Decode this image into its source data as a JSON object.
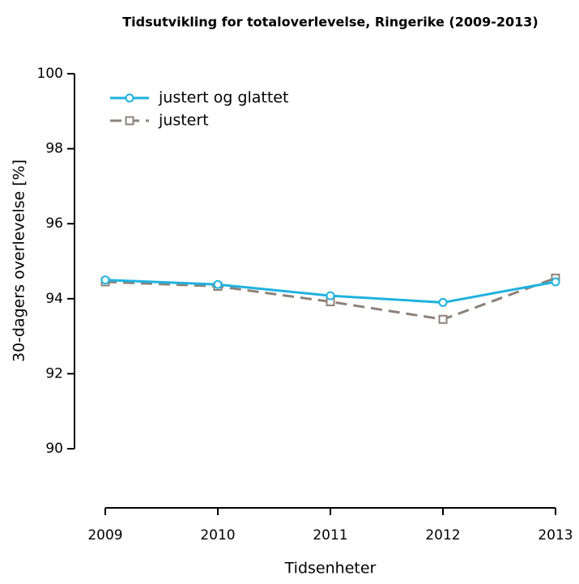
{
  "chart_data": {
    "type": "line",
    "title": "Tidsutvikling for totaloverlevelse, Ringerike (2009-2013)",
    "xlabel": "Tidsenheter",
    "ylabel": "30-dagers overlevelse [%]",
    "x": [
      2009,
      2010,
      2011,
      2012,
      2013
    ],
    "xlim": [
      2009,
      2013
    ],
    "xticks": [
      2009,
      2010,
      2011,
      2012,
      2013
    ],
    "ylim": [
      90,
      100
    ],
    "yticks": [
      90,
      92,
      94,
      96,
      98,
      100
    ],
    "legend": "top-left",
    "series": [
      {
        "name": "justert og glattet",
        "color": "#1fb2e0",
        "marker": "circle",
        "dash": "solid",
        "values": [
          94.5,
          94.38,
          94.08,
          93.9,
          94.45
        ]
      },
      {
        "name": "justert",
        "color": "#8c8279",
        "marker": "square",
        "dash": "dashed",
        "values": [
          94.45,
          94.33,
          93.92,
          93.45,
          94.55
        ]
      }
    ]
  }
}
